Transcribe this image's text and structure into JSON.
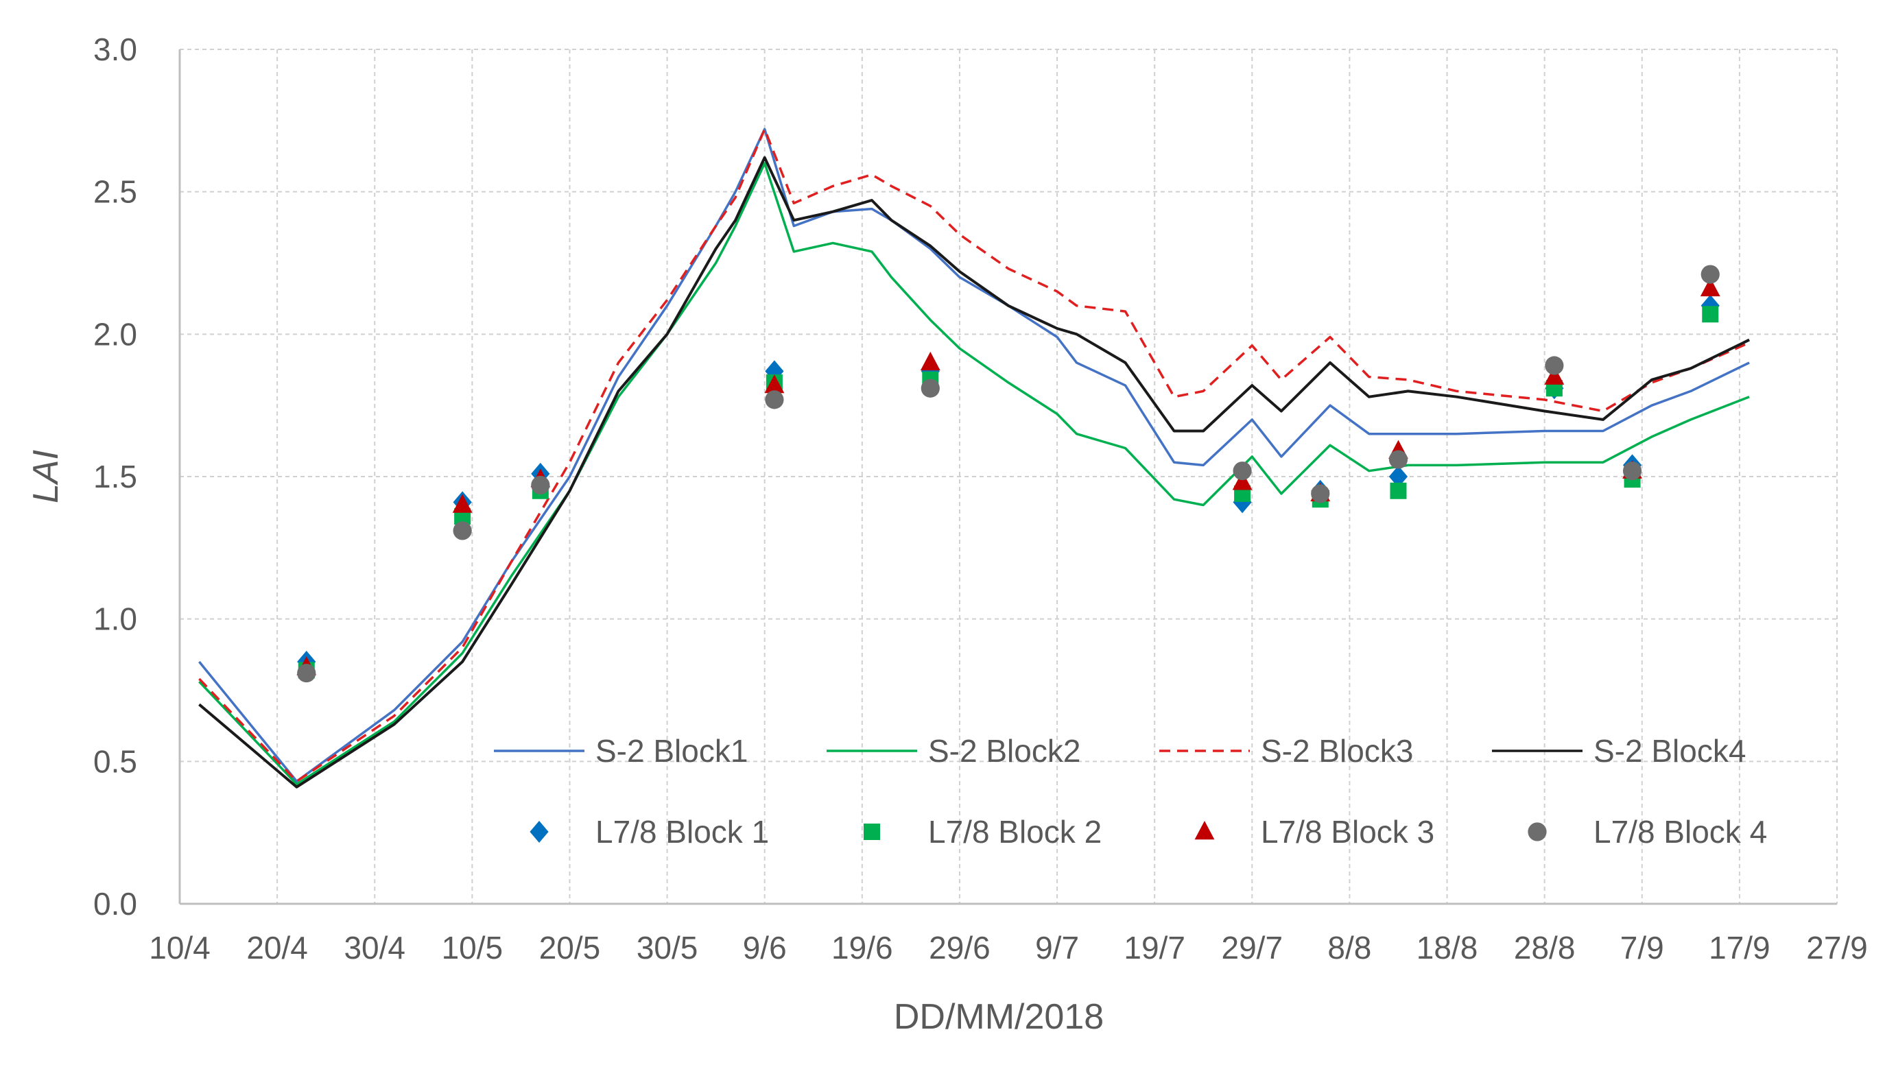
{
  "chart_data": {
    "type": "line",
    "title": "",
    "xlabel": "DD/MM/2018",
    "ylabel": "LAI",
    "xlim": [
      0,
      170
    ],
    "ylim": [
      0,
      3.0
    ],
    "grid": true,
    "legend_position": "bottom-right inside",
    "x_ticks": [
      {
        "x": 0,
        "label": "10/4"
      },
      {
        "x": 10,
        "label": "20/4"
      },
      {
        "x": 20,
        "label": "30/4"
      },
      {
        "x": 30,
        "label": "10/5"
      },
      {
        "x": 40,
        "label": "20/5"
      },
      {
        "x": 50,
        "label": "30/5"
      },
      {
        "x": 60,
        "label": "9/6"
      },
      {
        "x": 70,
        "label": "19/6"
      },
      {
        "x": 80,
        "label": "29/6"
      },
      {
        "x": 90,
        "label": "9/7"
      },
      {
        "x": 100,
        "label": "19/7"
      },
      {
        "x": 110,
        "label": "29/7"
      },
      {
        "x": 120,
        "label": "8/8"
      },
      {
        "x": 130,
        "label": "18/8"
      },
      {
        "x": 140,
        "label": "28/8"
      },
      {
        "x": 150,
        "label": "7/9"
      },
      {
        "x": 160,
        "label": "17/9"
      },
      {
        "x": 170,
        "label": "27/9"
      }
    ],
    "y_ticks": [
      {
        "y": 0,
        "label": "0.0"
      },
      {
        "y": 0.5,
        "label": "0.5"
      },
      {
        "y": 1.0,
        "label": "1.0"
      },
      {
        "y": 1.5,
        "label": "1.5"
      },
      {
        "y": 2.0,
        "label": "2.0"
      },
      {
        "y": 2.5,
        "label": "2.5"
      },
      {
        "y": 3.0,
        "label": "3.0"
      }
    ],
    "series": [
      {
        "name": "S-2 Block1",
        "kind": "line",
        "color": "#4472c4",
        "dash": "",
        "points": [
          [
            2,
            0.85
          ],
          [
            12,
            0.43
          ],
          [
            22,
            0.68
          ],
          [
            29,
            0.92
          ],
          [
            34,
            1.2
          ],
          [
            40,
            1.5
          ],
          [
            45,
            1.85
          ],
          [
            50,
            2.1
          ],
          [
            55,
            2.38
          ],
          [
            57,
            2.5
          ],
          [
            60,
            2.72
          ],
          [
            63,
            2.38
          ],
          [
            67,
            2.43
          ],
          [
            71,
            2.44
          ],
          [
            73,
            2.4
          ],
          [
            77,
            2.3
          ],
          [
            80,
            2.2
          ],
          [
            85,
            2.1
          ],
          [
            90,
            1.99
          ],
          [
            92,
            1.9
          ],
          [
            97,
            1.82
          ],
          [
            102,
            1.55
          ],
          [
            105,
            1.54
          ],
          [
            110,
            1.7
          ],
          [
            113,
            1.57
          ],
          [
            118,
            1.75
          ],
          [
            122,
            1.65
          ],
          [
            126,
            1.65
          ],
          [
            131,
            1.65
          ],
          [
            140,
            1.66
          ],
          [
            146,
            1.66
          ],
          [
            151,
            1.75
          ],
          [
            155,
            1.8
          ],
          [
            161,
            1.9
          ]
        ]
      },
      {
        "name": "S-2 Block2",
        "kind": "line",
        "color": "#00b050",
        "dash": "",
        "points": [
          [
            2,
            0.78
          ],
          [
            12,
            0.42
          ],
          [
            22,
            0.64
          ],
          [
            29,
            0.88
          ],
          [
            34,
            1.15
          ],
          [
            40,
            1.45
          ],
          [
            45,
            1.78
          ],
          [
            50,
            2.0
          ],
          [
            55,
            2.25
          ],
          [
            57,
            2.38
          ],
          [
            60,
            2.6
          ],
          [
            63,
            2.29
          ],
          [
            67,
            2.32
          ],
          [
            71,
            2.29
          ],
          [
            73,
            2.2
          ],
          [
            77,
            2.05
          ],
          [
            80,
            1.95
          ],
          [
            85,
            1.83
          ],
          [
            90,
            1.72
          ],
          [
            92,
            1.65
          ],
          [
            97,
            1.6
          ],
          [
            102,
            1.42
          ],
          [
            105,
            1.4
          ],
          [
            110,
            1.57
          ],
          [
            113,
            1.44
          ],
          [
            118,
            1.61
          ],
          [
            122,
            1.52
          ],
          [
            126,
            1.54
          ],
          [
            131,
            1.54
          ],
          [
            140,
            1.55
          ],
          [
            146,
            1.55
          ],
          [
            151,
            1.64
          ],
          [
            155,
            1.7
          ],
          [
            161,
            1.78
          ]
        ]
      },
      {
        "name": "S-2 Block3",
        "kind": "line",
        "color": "#e02020",
        "dash": "16,10",
        "points": [
          [
            2,
            0.79
          ],
          [
            12,
            0.43
          ],
          [
            22,
            0.66
          ],
          [
            29,
            0.9
          ],
          [
            34,
            1.2
          ],
          [
            40,
            1.55
          ],
          [
            45,
            1.9
          ],
          [
            50,
            2.12
          ],
          [
            55,
            2.38
          ],
          [
            57,
            2.48
          ],
          [
            60,
            2.72
          ],
          [
            63,
            2.46
          ],
          [
            67,
            2.52
          ],
          [
            71,
            2.56
          ],
          [
            73,
            2.52
          ],
          [
            77,
            2.45
          ],
          [
            80,
            2.35
          ],
          [
            85,
            2.23
          ],
          [
            90,
            2.15
          ],
          [
            92,
            2.1
          ],
          [
            97,
            2.08
          ],
          [
            102,
            1.78
          ],
          [
            105,
            1.8
          ],
          [
            110,
            1.96
          ],
          [
            113,
            1.84
          ],
          [
            118,
            1.99
          ],
          [
            122,
            1.85
          ],
          [
            126,
            1.84
          ],
          [
            131,
            1.8
          ],
          [
            140,
            1.77
          ],
          [
            146,
            1.73
          ],
          [
            151,
            1.83
          ],
          [
            155,
            1.88
          ],
          [
            161,
            1.97
          ]
        ]
      },
      {
        "name": "S-2 Block4",
        "kind": "line",
        "color": "#1a1a1a",
        "dash": "",
        "points": [
          [
            2,
            0.7
          ],
          [
            12,
            0.41
          ],
          [
            22,
            0.63
          ],
          [
            29,
            0.85
          ],
          [
            34,
            1.12
          ],
          [
            40,
            1.45
          ],
          [
            45,
            1.8
          ],
          [
            50,
            2.0
          ],
          [
            55,
            2.3
          ],
          [
            57,
            2.4
          ],
          [
            60,
            2.62
          ],
          [
            63,
            2.4
          ],
          [
            67,
            2.43
          ],
          [
            71,
            2.47
          ],
          [
            73,
            2.4
          ],
          [
            77,
            2.31
          ],
          [
            80,
            2.22
          ],
          [
            85,
            2.1
          ],
          [
            90,
            2.02
          ],
          [
            92,
            2.0
          ],
          [
            97,
            1.9
          ],
          [
            102,
            1.66
          ],
          [
            105,
            1.66
          ],
          [
            110,
            1.82
          ],
          [
            113,
            1.73
          ],
          [
            118,
            1.9
          ],
          [
            122,
            1.78
          ],
          [
            126,
            1.8
          ],
          [
            131,
            1.78
          ],
          [
            140,
            1.73
          ],
          [
            146,
            1.7
          ],
          [
            151,
            1.84
          ],
          [
            155,
            1.88
          ],
          [
            161,
            1.98
          ]
        ]
      },
      {
        "name": "L7/8 Block 1",
        "kind": "scatter",
        "marker": "diamond",
        "color": "#0070c0",
        "points": [
          [
            13,
            0.85
          ],
          [
            29,
            1.41
          ],
          [
            37,
            1.51
          ],
          [
            61,
            1.87
          ],
          [
            77,
            1.87
          ],
          [
            109,
            1.41
          ],
          [
            117,
            1.45
          ],
          [
            125,
            1.5
          ],
          [
            141,
            1.81
          ],
          [
            149,
            1.54
          ],
          [
            157,
            2.1
          ]
        ]
      },
      {
        "name": "L7/8 Block 2",
        "kind": "scatter",
        "marker": "square",
        "color": "#00b050",
        "points": [
          [
            13,
            0.82
          ],
          [
            29,
            1.36
          ],
          [
            37,
            1.45
          ],
          [
            61,
            1.83
          ],
          [
            77,
            1.84
          ],
          [
            109,
            1.44
          ],
          [
            117,
            1.42
          ],
          [
            125,
            1.45
          ],
          [
            141,
            1.81
          ],
          [
            149,
            1.49
          ],
          [
            157,
            2.07
          ]
        ]
      },
      {
        "name": "L7/8 Block 3",
        "kind": "scatter",
        "marker": "triangle",
        "color": "#c00000",
        "points": [
          [
            13,
            0.83
          ],
          [
            29,
            1.4
          ],
          [
            37,
            1.49
          ],
          [
            61,
            1.82
          ],
          [
            77,
            1.9
          ],
          [
            109,
            1.48
          ],
          [
            117,
            1.44
          ],
          [
            125,
            1.59
          ],
          [
            141,
            1.85
          ],
          [
            149,
            1.52
          ],
          [
            157,
            2.16
          ]
        ]
      },
      {
        "name": "L7/8 Block 4",
        "kind": "scatter",
        "marker": "circle",
        "color": "#6d6d6d",
        "points": [
          [
            13,
            0.81
          ],
          [
            29,
            1.31
          ],
          [
            37,
            1.47
          ],
          [
            61,
            1.77
          ],
          [
            77,
            1.81
          ],
          [
            109,
            1.52
          ],
          [
            117,
            1.44
          ],
          [
            125,
            1.56
          ],
          [
            141,
            1.89
          ],
          [
            149,
            1.52
          ],
          [
            157,
            2.21
          ]
        ]
      }
    ]
  }
}
